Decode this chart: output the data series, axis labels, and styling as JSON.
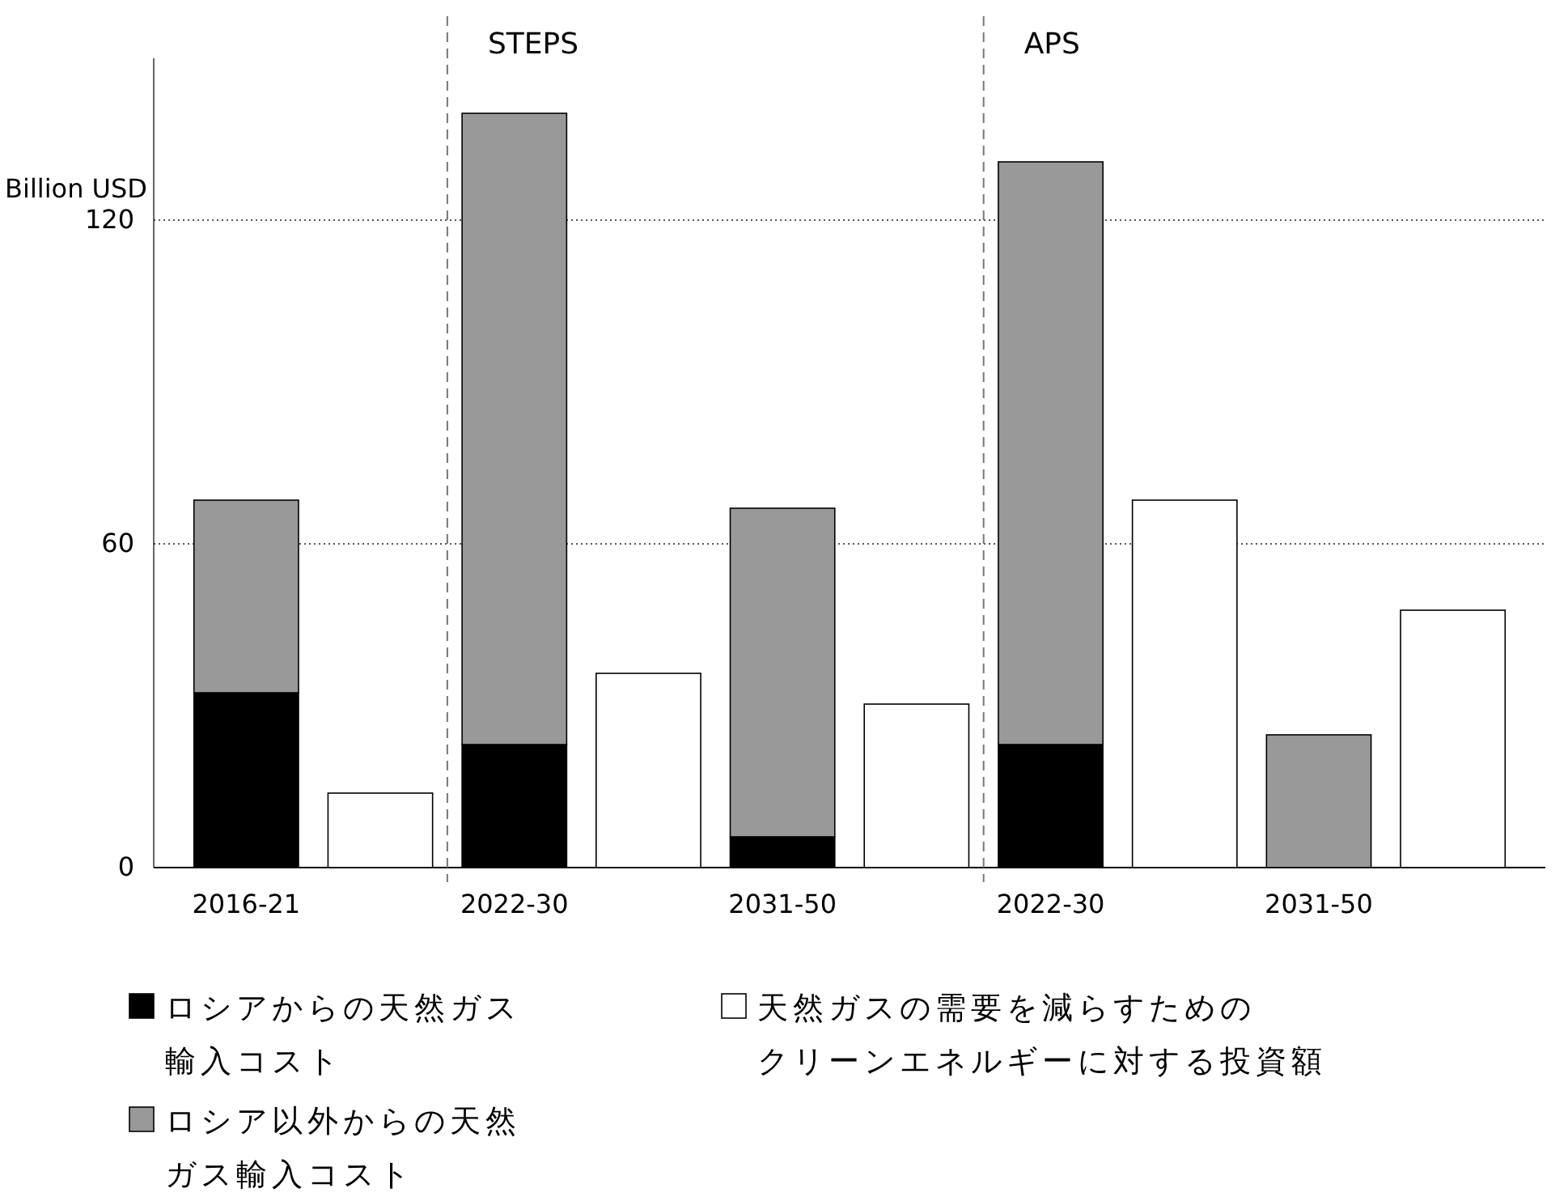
{
  "chart_data": {
    "type": "bar",
    "ylabel": "Billion USD",
    "categories": [
      "2016-21",
      null,
      "2022-30",
      null,
      "2031-50",
      null,
      "2022-30",
      null,
      "2031-50",
      null
    ],
    "series": [
      {
        "name": "ロシアからの天然ガス輸入コスト",
        "color": "#000000",
        "values": [
          32.4,
          null,
          22.8,
          null,
          5.7,
          null,
          22.8,
          null,
          null,
          null
        ]
      },
      {
        "name": "ロシア以外からの天然ガス輸入コスト",
        "color": "#999999",
        "values": [
          35.7,
          null,
          117,
          null,
          60.9,
          null,
          108,
          null,
          24.6,
          null
        ]
      },
      {
        "name": "天然ガスの需要を減らすためのクリーンエネルギーに対する投資額",
        "color": "#ffffff",
        "values": [
          null,
          13.8,
          null,
          36,
          null,
          30.3,
          null,
          68.1,
          null,
          47.7
        ]
      }
    ],
    "stacked": true,
    "ylim": [
      0,
      150
    ],
    "yticks": [
      0,
      60,
      120
    ],
    "grid": "y",
    "legend": "bottom",
    "annotations": [
      "STEPS",
      "APS"
    ]
  }
}
